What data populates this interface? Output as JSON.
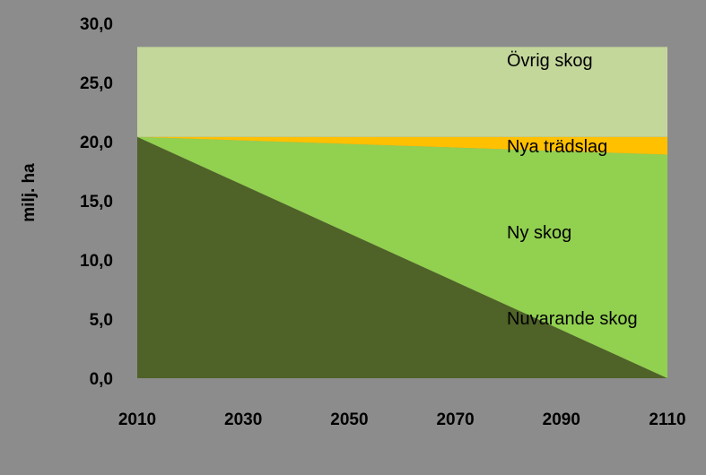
{
  "chart_data": {
    "type": "area",
    "stacked": true,
    "title": "",
    "xlabel": "",
    "ylabel": "milj. ha",
    "x": [
      2010,
      2110
    ],
    "x_ticks": [
      "2010",
      "2030",
      "2050",
      "2070",
      "2090",
      "2110"
    ],
    "y_ticks": [
      "0,0",
      "5,0",
      "10,0",
      "15,0",
      "20,0",
      "25,0",
      "30,0"
    ],
    "xlim": [
      2010,
      2110
    ],
    "ylim": [
      0,
      30
    ],
    "grid": false,
    "legend": "inline labels",
    "series": [
      {
        "name": "Nuvarande skog",
        "values": [
          20.4,
          0.0
        ],
        "color": "#4f6228"
      },
      {
        "name": "Ny skog",
        "values": [
          0.0,
          18.9
        ],
        "color": "#92d050"
      },
      {
        "name": "Nya trädslag",
        "values": [
          0.0,
          1.5
        ],
        "color": "#ffc000"
      },
      {
        "name": "Övrig skog",
        "values": [
          7.6,
          7.6
        ],
        "color": "#c4d79b"
      }
    ]
  }
}
